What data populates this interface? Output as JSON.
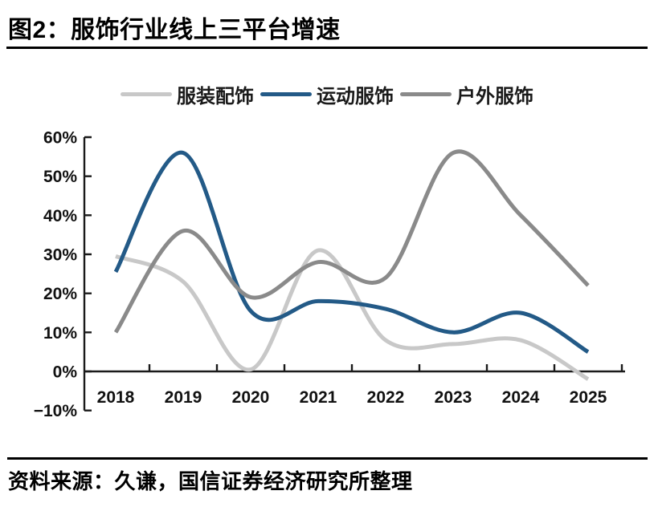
{
  "page": {
    "title": "图2：服饰行业线上三平台增速",
    "source": "资料来源：久谦，国信证券经济研究所整理"
  },
  "chart_data": {
    "type": "line",
    "title": "服饰行业线上三平台增速",
    "categories": [
      "2018",
      "2019",
      "2020",
      "2021",
      "2022",
      "2023",
      "2024",
      "2025"
    ],
    "series": [
      {
        "name": "服装配饰",
        "color": "#c8c8c8",
        "values": [
          29.5,
          23,
          0.5,
          31,
          8,
          7,
          8,
          -2
        ]
      },
      {
        "name": "运动服饰",
        "color": "#235a87",
        "values": [
          25.5,
          56,
          15.5,
          18,
          16,
          10,
          15,
          5
        ]
      },
      {
        "name": "户外服饰",
        "color": "#8a8a8a",
        "values": [
          10,
          36,
          19,
          28,
          24,
          56,
          40,
          22
        ]
      }
    ],
    "xlabel": "",
    "ylabel": "",
    "ylim": [
      -10,
      60
    ],
    "ytick_values": [
      60,
      50,
      40,
      30,
      20,
      10,
      0,
      -10
    ],
    "ytick_labels": [
      "60%",
      "50%",
      "40%",
      "30%",
      "20%",
      "10%",
      "0%",
      "−10%"
    ],
    "legend_position": "top",
    "grid": false,
    "line_smoothing": true,
    "axis_color": "#1a1a1a"
  }
}
